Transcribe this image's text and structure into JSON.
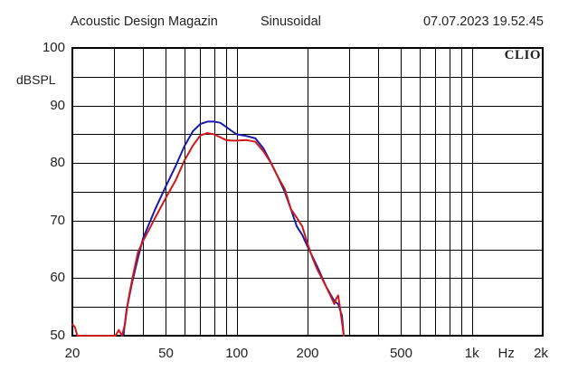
{
  "header": {
    "left": "Acoustic Design Magazin",
    "center": "Sinusoidal",
    "right": "07.07.2023 19.52.45"
  },
  "brand": "CLIO",
  "chart_data": {
    "type": "line",
    "xscale": "log",
    "xlim": [
      20,
      2000
    ],
    "ylim": [
      50,
      100
    ],
    "ylabel": "dBSPL",
    "xunit": "Hz",
    "grid": true,
    "yticks": [
      "50",
      "60",
      "70",
      "80",
      "90",
      "100"
    ],
    "xticks": [
      {
        "value": 20,
        "label": "20"
      },
      {
        "value": 50,
        "label": "50"
      },
      {
        "value": 100,
        "label": "100"
      },
      {
        "value": 200,
        "label": "200"
      },
      {
        "value": 500,
        "label": "500"
      },
      {
        "value": 1000,
        "label": "1k"
      },
      {
        "value": 2000,
        "label": "2k"
      }
    ],
    "series": [
      {
        "color": "#1a1aa8",
        "x": [
          33,
          34,
          36,
          38,
          40,
          45,
          50,
          55,
          60,
          65,
          70,
          75,
          80,
          85,
          90,
          95,
          100,
          110,
          120,
          130,
          140,
          150,
          160,
          170,
          180,
          190,
          200,
          220,
          240,
          260,
          270,
          280,
          285
        ],
        "y": [
          50.0,
          54.5,
          59.5,
          63.5,
          67.0,
          72.0,
          76.0,
          79.5,
          83.0,
          85.5,
          86.8,
          87.2,
          87.2,
          87.0,
          86.3,
          85.6,
          85.0,
          84.7,
          84.3,
          82.5,
          80.0,
          77.5,
          75.0,
          72.0,
          69.0,
          67.5,
          65.5,
          62.0,
          58.5,
          56.0,
          55.5,
          53.5,
          50.0
        ]
      },
      {
        "color": "#cc1a1a",
        "x": [
          20,
          20.5,
          21,
          30.5,
          31.5,
          32.5,
          33.5,
          34.5,
          36,
          38,
          40,
          45,
          50,
          55,
          60,
          65,
          70,
          75,
          80,
          85,
          90,
          95,
          100,
          110,
          120,
          130,
          140,
          150,
          160,
          170,
          180,
          190,
          200,
          210,
          220,
          230,
          240,
          250,
          260,
          265,
          270,
          280,
          285
        ],
        "y": [
          52.0,
          51.5,
          50.0,
          50.0,
          51.0,
          50.0,
          52.0,
          56.0,
          60.0,
          64.5,
          66.5,
          70.5,
          74.0,
          77.0,
          80.5,
          83.0,
          84.8,
          85.2,
          85.0,
          84.5,
          84.0,
          83.9,
          83.9,
          84.0,
          83.7,
          82.0,
          80.0,
          77.5,
          75.5,
          72.0,
          70.5,
          69.0,
          66.0,
          63.5,
          61.5,
          60.0,
          58.5,
          57.0,
          55.5,
          56.5,
          57.0,
          52.5,
          50.0
        ]
      }
    ]
  }
}
